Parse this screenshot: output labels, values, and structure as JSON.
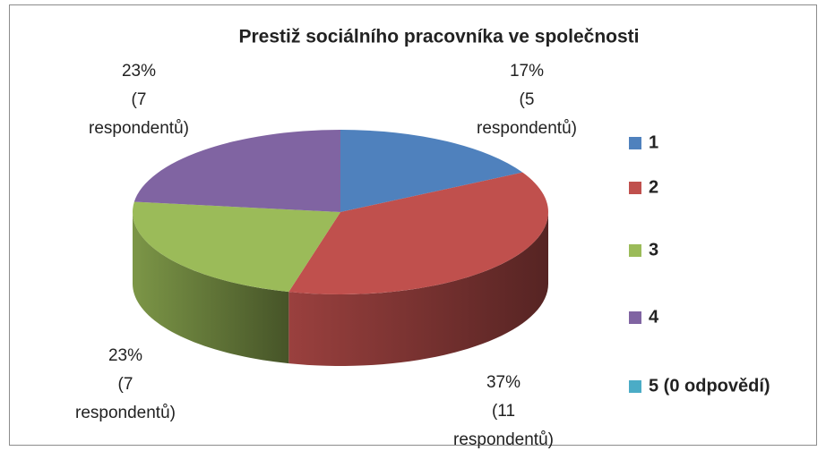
{
  "chart_data": {
    "type": "pie3d",
    "title": "Prestiž sociálního pracovníka ve společnosti",
    "categories": [
      "1",
      "2",
      "3",
      "4",
      "5 (0 odpovědí)"
    ],
    "values": [
      17,
      37,
      23,
      23,
      0
    ],
    "value_labels": [
      [
        "17%",
        "(5",
        "respondentů)"
      ],
      [
        "37%",
        "(11",
        "respondentů)"
      ],
      [
        "23%",
        "(7",
        "respondentů)"
      ],
      [
        "23%",
        "(7",
        "respondentů)"
      ],
      null
    ],
    "colors": [
      "#4f81bd",
      "#c0504d",
      "#9bbb59",
      "#8064a2",
      "#4bacc6"
    ],
    "legend": "right"
  }
}
